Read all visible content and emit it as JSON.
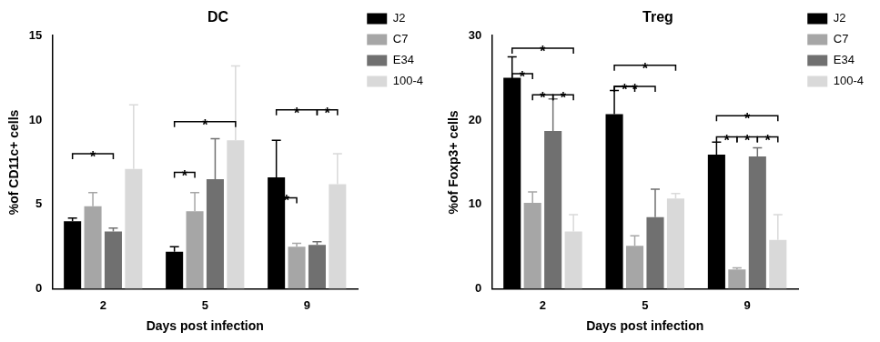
{
  "chart_data": [
    {
      "type": "bar",
      "title": "DC",
      "x_label": "Days post infection",
      "y_label": "%of CD11c+ cells",
      "categories": [
        "2",
        "5",
        "9"
      ],
      "series": [
        {
          "name": "J2",
          "color": "#000000",
          "values": [
            4.0,
            2.2,
            6.6
          ],
          "errors": [
            0.2,
            0.3,
            2.2
          ]
        },
        {
          "name": "C7",
          "color": "#a6a6a6",
          "values": [
            4.9,
            4.6,
            2.5
          ],
          "errors": [
            0.8,
            1.1,
            0.2
          ]
        },
        {
          "name": "E34",
          "color": "#707070",
          "values": [
            3.4,
            6.5,
            2.6
          ],
          "errors": [
            0.2,
            2.4,
            0.2
          ]
        },
        {
          "name": "100-4",
          "color": "#d9d9d9",
          "values": [
            7.1,
            8.8,
            6.2
          ],
          "errors": [
            3.8,
            4.4,
            1.8
          ]
        }
      ],
      "ylim": [
        0,
        15
      ],
      "yticks": [
        0,
        5,
        10,
        15
      ],
      "grid": false,
      "legend": "top right",
      "significance": [
        {
          "category": "2",
          "from": "J2",
          "to": "E34",
          "y": 8.0,
          "text": "*"
        },
        {
          "category": "5",
          "from": "J2",
          "to": "100-4",
          "y": 9.9,
          "text": "*"
        },
        {
          "category": "5",
          "from": "J2",
          "to": "C7",
          "y": 6.9,
          "text": "*"
        },
        {
          "category": "9",
          "from": "J2",
          "to": "E34",
          "y": 10.6,
          "text": "*"
        },
        {
          "category": "9",
          "from": "J2",
          "to": "C7",
          "y": 5.4,
          "text": "*"
        },
        {
          "category": "9",
          "from": "E34",
          "to": "100-4",
          "y": 10.6,
          "text": "*"
        }
      ]
    },
    {
      "type": "bar",
      "title": "Treg",
      "x_label": "Days post infection",
      "y_label": "%of Foxp3+ cells",
      "categories": [
        "2",
        "5",
        "9"
      ],
      "series": [
        {
          "name": "J2",
          "color": "#000000",
          "values": [
            25.0,
            20.7,
            15.9
          ],
          "errors": [
            2.5,
            2.8,
            1.5
          ]
        },
        {
          "name": "C7",
          "color": "#a6a6a6",
          "values": [
            10.2,
            5.1,
            2.3
          ],
          "errors": [
            1.3,
            1.2,
            0.2
          ]
        },
        {
          "name": "E34",
          "color": "#707070",
          "values": [
            18.7,
            8.5,
            15.7
          ],
          "errors": [
            3.8,
            3.3,
            1.0
          ]
        },
        {
          "name": "100-4",
          "color": "#d9d9d9",
          "values": [
            6.8,
            10.7,
            5.8
          ],
          "errors": [
            2.0,
            0.6,
            3.0
          ]
        }
      ],
      "ylim": [
        0,
        30
      ],
      "yticks": [
        0,
        10,
        20,
        30
      ],
      "grid": false,
      "legend": "top right",
      "significance": [
        {
          "category": "2",
          "from": "J2",
          "to": "100-4",
          "y": 28.5,
          "text": "*"
        },
        {
          "category": "2",
          "from": "J2",
          "to": "C7",
          "y": 25.5,
          "text": "*"
        },
        {
          "category": "2",
          "from": "C7",
          "to": "E34",
          "y": 23.0,
          "text": "*"
        },
        {
          "category": "2",
          "from": "E34",
          "to": "100-4",
          "y": 23.0,
          "text": "*"
        },
        {
          "category": "5",
          "from": "J2",
          "to": "100-4",
          "y": 26.5,
          "text": "*"
        },
        {
          "category": "5",
          "from": "J2",
          "to": "C7",
          "y": 24.0,
          "text": "*"
        },
        {
          "category": "5",
          "from": "J2",
          "to": "E34",
          "y": 24.0,
          "text": "*"
        },
        {
          "category": "9",
          "from": "J2",
          "to": "100-4",
          "y": 20.5,
          "text": "*"
        },
        {
          "category": "9",
          "from": "J2",
          "to": "C7",
          "y": 18.0,
          "text": "*"
        },
        {
          "category": "9",
          "from": "C7",
          "to": "E34",
          "y": 18.0,
          "text": "*"
        },
        {
          "category": "9",
          "from": "E34",
          "to": "100-4",
          "y": 18.0,
          "text": "*"
        }
      ]
    }
  ]
}
